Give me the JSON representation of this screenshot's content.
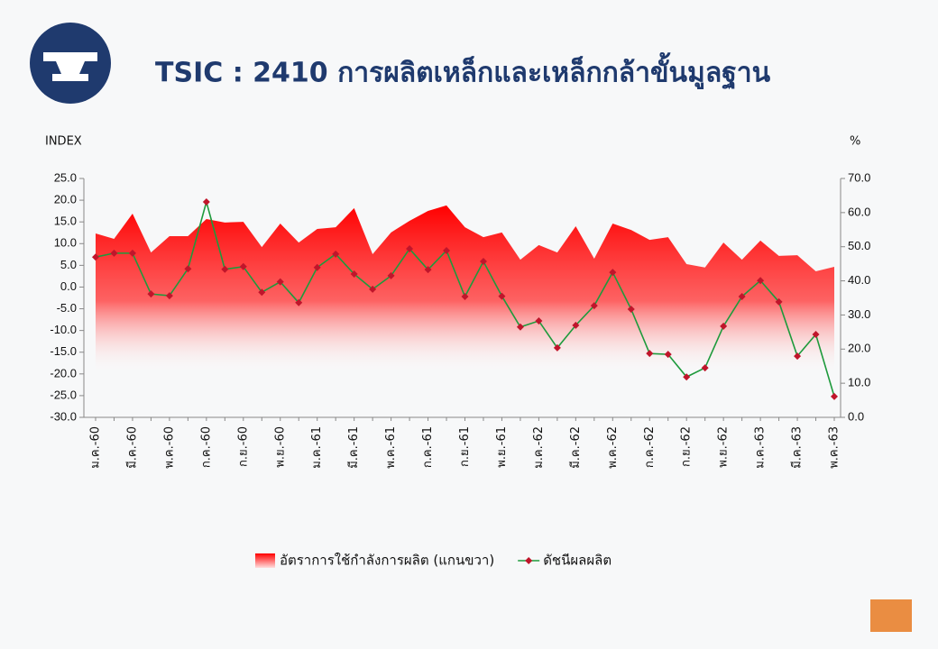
{
  "chart_data": {
    "type": "line",
    "title": "TSIC : 2410 การผลิตเหล็กและเหล็กกล้าขั้นมูลฐาน",
    "y_axis_title": "INDEX",
    "y2_axis_title": "%",
    "categories": [
      "ม.ค.-60",
      null,
      "มี.ค.-60",
      null,
      "พ.ค.-60",
      null,
      "ก.ค.-60",
      null,
      "ก.ย.-60",
      null,
      "พ.ย.-60",
      null,
      "ม.ค.-61",
      null,
      "มี.ค.-61",
      null,
      "พ.ค.-61",
      null,
      "ก.ค.-61",
      null,
      "ก.ย.-61",
      null,
      "พ.ย.-61",
      null,
      "ม.ค.-62",
      null,
      "มี.ค.-62",
      null,
      "พ.ค.-62",
      null,
      "ก.ค.-62",
      null,
      "ก.ย.-62",
      null,
      "พ.ย.-62",
      null,
      "ม.ค.-63",
      null,
      "มี.ค.-63",
      null,
      "พ.ค.-63"
    ],
    "series": [
      {
        "name": "อัตราการใช้กำลังการผลิต (แกนขวา)",
        "type": "area",
        "axis": "y2",
        "color": "#ff0000",
        "values": [
          53.9,
          52.3,
          59.7,
          48.3,
          53.1,
          53.1,
          58.1,
          57.1,
          57.3,
          49.9,
          56.8,
          51.2,
          55.2,
          55.7,
          61.3,
          47.8,
          54.2,
          57.6,
          60.5,
          62.1,
          55.7,
          52.8,
          54.2,
          46.2,
          50.5,
          48.3,
          56.0,
          46.5,
          56.8,
          54.9,
          52.0,
          52.8,
          44.9,
          43.9,
          51.2,
          46.2,
          51.8,
          47.3,
          47.5,
          42.8,
          44.1
        ]
      },
      {
        "name": "ดัชนีผลผลิต",
        "type": "line",
        "axis": "y",
        "color": "#1e9a3c",
        "marker_color": "#c0152b",
        "values": [
          6.9,
          7.8,
          7.8,
          -1.6,
          -2.0,
          4.2,
          19.6,
          4.1,
          4.7,
          -1.2,
          1.2,
          -3.6,
          4.5,
          7.6,
          3.0,
          -0.5,
          2.6,
          8.8,
          4.0,
          8.4,
          -2.2,
          5.9,
          -2.1,
          -9.2,
          -7.8,
          -14.0,
          -8.8,
          -4.3,
          3.4,
          -5.1,
          -15.3,
          -15.5,
          -20.7,
          -18.6,
          -9.0,
          -2.2,
          1.5,
          -3.4,
          -15.9,
          -10.9,
          -25.2
        ]
      }
    ],
    "ylim": [
      -30,
      25
    ],
    "yticks": [
      {
        "value": -30,
        "label": "-30.0"
      },
      {
        "value": -25,
        "label": "-25.0"
      },
      {
        "value": -20,
        "label": "-20.0"
      },
      {
        "value": -15,
        "label": "-15.0"
      },
      {
        "value": -10,
        "label": "-10.0"
      },
      {
        "value": -5,
        "label": "-5.0"
      },
      {
        "value": 0,
        "label": "0.0"
      },
      {
        "value": 5,
        "label": "5.0"
      },
      {
        "value": 10,
        "label": "10.0"
      },
      {
        "value": 15,
        "label": "15.0"
      },
      {
        "value": 20,
        "label": "20.0"
      },
      {
        "value": 25,
        "label": "25.0"
      }
    ],
    "y2lim": [
      0,
      70
    ],
    "y2ticks": [
      {
        "value": 0,
        "label": "0.0"
      },
      {
        "value": 10,
        "label": "10.0"
      },
      {
        "value": 20,
        "label": "20.0"
      },
      {
        "value": 30,
        "label": "30.0"
      },
      {
        "value": 40,
        "label": "40.0"
      },
      {
        "value": 50,
        "label": "50.0"
      },
      {
        "value": 60,
        "label": "60.0"
      },
      {
        "value": 70,
        "label": "70.0"
      }
    ],
    "legend": "bottom"
  }
}
